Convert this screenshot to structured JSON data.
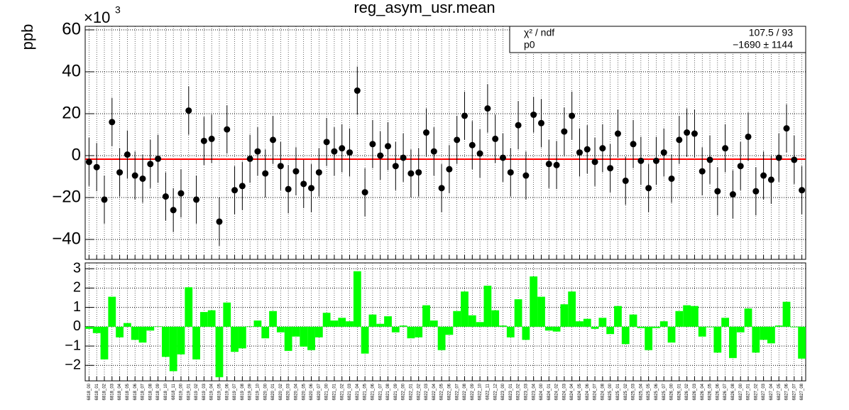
{
  "chart_data": [
    {
      "type": "errorbar",
      "title": "reg_asym_usr.mean",
      "y_label": "ppb",
      "multiplier": "×10",
      "multiplier_exp": "3",
      "ylim": [
        -49.5,
        61.7
      ],
      "yticks": [
        {
          "value": -40,
          "label": "−40"
        },
        {
          "value": -20,
          "label": "−20"
        },
        0,
        20,
        40,
        60
      ],
      "grid": true,
      "series": [
        {
          "color": "#000000",
          "values": [
            -3,
            -5.5,
            -21,
            16,
            -8,
            0.5,
            -9.5,
            -11,
            -4,
            -1.5,
            -19.5,
            -26,
            -18,
            21.5,
            -21,
            7,
            8,
            -31.5,
            12.5,
            -16.5,
            -14.5,
            -1.5,
            2,
            -8.5,
            7.5,
            -5,
            -16,
            -7.5,
            -13.5,
            -15.5,
            -8,
            6.5,
            2,
            3.5,
            1.5,
            31,
            -17.5,
            5.5,
            0,
            4.5,
            -5,
            -1,
            -8.5,
            -8,
            11,
            2,
            -15.5,
            -6.5,
            7.5,
            19,
            5,
            1,
            22.5,
            8,
            -1,
            -8,
            14.5,
            -9.5,
            19.5,
            15.5,
            -4,
            -4.5,
            11.5,
            19,
            1.5,
            3,
            -3,
            3.5,
            -6,
            10.5,
            -12,
            5.5,
            -2.5,
            -15.5,
            -2.5,
            1.5,
            -11,
            7.5,
            11,
            10.5,
            -7.5,
            -2,
            -17,
            3.5,
            -18.5,
            -5,
            9,
            -17,
            -9.5,
            -11.5,
            -1,
            13,
            -2,
            -16.5
          ],
          "errors": [
            11.5,
            11.5,
            11.5,
            11.5,
            11.5,
            11.5,
            11.5,
            11.5,
            11.5,
            11.5,
            11.5,
            10.5,
            11.5,
            11.5,
            11.5,
            11.5,
            11.5,
            11.5,
            11.5,
            11.5,
            11.5,
            11.5,
            11.5,
            11.5,
            11.5,
            11.5,
            11.5,
            11.5,
            11.5,
            11.5,
            11.5,
            11.5,
            11.5,
            11.5,
            11.5,
            11.5,
            11.5,
            11.5,
            11.5,
            11.5,
            11.5,
            11.5,
            11.5,
            11.5,
            11.5,
            11.5,
            11.5,
            11.5,
            11.5,
            11.5,
            11.5,
            11.5,
            11.5,
            11.5,
            11.5,
            11.5,
            11.5,
            11.5,
            8.5,
            11.5,
            11.5,
            11.5,
            11.5,
            11.5,
            11.5,
            11.5,
            11.5,
            11.5,
            11.5,
            11.5,
            11.5,
            11.5,
            11.5,
            11.5,
            11.5,
            11.5,
            11.5,
            11.5,
            11.5,
            11.5,
            11.5,
            11.5,
            11.5,
            11.5,
            11.5,
            11.5,
            11.5,
            11.5,
            11.5,
            11.5,
            11.5,
            11.5,
            11.5,
            11.5
          ]
        }
      ],
      "fit": {
        "value": -1.69,
        "color": "#ff0000"
      },
      "stats": [
        {
          "label": "χ² / ndf",
          "value": "107.5 / 93"
        },
        {
          "label": "p0",
          "value": "−1690 ±  1144"
        }
      ]
    },
    {
      "type": "bar",
      "color": "#00ff00",
      "ylim": [
        -2.8,
        3.3
      ],
      "yticks": [
        {
          "value": -2,
          "label": "−2"
        },
        {
          "value": -1,
          "label": "−1"
        },
        0,
        1,
        2,
        3
      ],
      "grid": true,
      "categories": [
        "6818_00",
        "6818_01",
        "6818_02",
        "6818_03",
        "6818_04",
        "6818_05",
        "6818_06",
        "6818_07",
        "6818_08",
        "6818_09",
        "6818_10",
        "6818_11",
        "6819_00",
        "6819_01",
        "6819_02",
        "6819_03",
        "6819_04",
        "6819_05",
        "6819_06",
        "6819_07",
        "6819_08",
        "6819_09",
        "6819_10",
        "6820_00",
        "6820_01",
        "6820_02",
        "6820_03",
        "6820_04",
        "6820_05",
        "6820_06",
        "6820_07",
        "6821_00",
        "6821_01",
        "6821_02",
        "6821_03",
        "6821_04",
        "6821_05",
        "6821_06",
        "6821_07",
        "6821_08",
        "6821_09",
        "6822_00",
        "6822_01",
        "6822_02",
        "6822_03",
        "6822_04",
        "6822_05",
        "6822_06",
        "6822_07",
        "6822_08",
        "6822_09",
        "6822_10",
        "6822_11",
        "6822_12",
        "6823_00",
        "6823_01",
        "6823_02",
        "6823_03",
        "6823_04",
        "6824_00",
        "6824_01",
        "6824_02",
        "6824_03",
        "6824_04",
        "6824_05",
        "6824_06",
        "6824_07",
        "6824_08",
        "6825_00",
        "6825_01",
        "6825_02",
        "6825_03",
        "6825_04",
        "6825_05",
        "6825_06",
        "6825_07",
        "6826_00",
        "6826_01",
        "6826_02",
        "6826_03",
        "6826_04",
        "6826_05",
        "6826_06",
        "6826_07",
        "6826_08",
        "6827_00",
        "6827_01",
        "6827_02",
        "6827_03",
        "6827_04",
        "6827_05",
        "6827_06",
        "6827_07",
        "6827_08"
      ],
      "values": [
        -0.11,
        -0.33,
        -1.69,
        1.55,
        -0.55,
        0.19,
        -0.68,
        -0.82,
        -0.2,
        0.02,
        -1.56,
        -2.3,
        -1.43,
        2.04,
        -1.69,
        0.76,
        0.85,
        -2.61,
        1.25,
        -1.3,
        -1.12,
        0.02,
        0.32,
        -0.6,
        0.81,
        -0.29,
        -1.25,
        -0.51,
        -1.03,
        -1.21,
        -0.55,
        0.72,
        0.32,
        0.46,
        0.28,
        2.87,
        -1.39,
        0.63,
        0.15,
        0.54,
        -0.29,
        0.06,
        -0.6,
        -0.55,
        1.11,
        0.32,
        -1.21,
        -0.42,
        0.81,
        1.82,
        0.59,
        0.24,
        2.12,
        0.85,
        0.06,
        -0.55,
        1.42,
        -0.68,
        2.6,
        1.55,
        -0.2,
        -0.25,
        1.16,
        1.82,
        0.28,
        0.41,
        -0.11,
        0.46,
        -0.38,
        1.07,
        -0.9,
        0.63,
        -0.07,
        -1.21,
        -0.07,
        0.28,
        -0.82,
        0.81,
        1.11,
        1.07,
        -0.51,
        -0.03,
        -1.34,
        0.46,
        -1.62,
        -0.29,
        0.94,
        -1.34,
        -0.68,
        -0.86,
        0.06,
        1.29,
        -0.03,
        -1.65
      ]
    }
  ]
}
